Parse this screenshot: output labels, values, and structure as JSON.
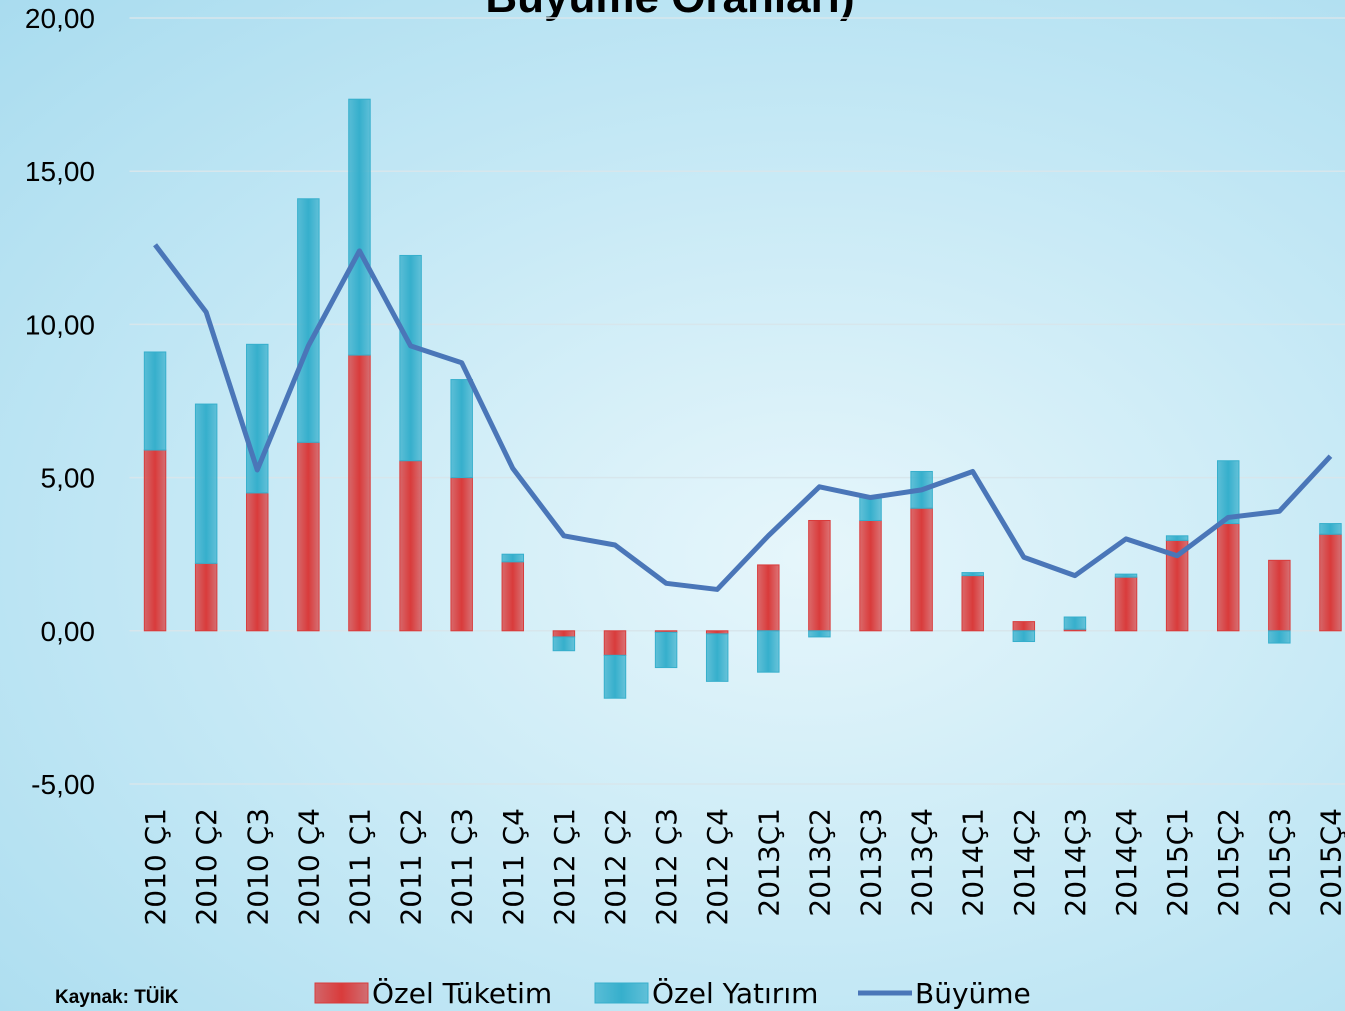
{
  "chart_data": {
    "type": "bar",
    "title": "Büyüme Oranları)",
    "source": "Kaynak: TÜİK",
    "categories": [
      "2010 Ç1",
      "2010 Ç2",
      "2010 Ç3",
      "2010 Ç4",
      "2011 Ç1",
      "2011 Ç2",
      "2011 Ç3",
      "2011 Ç4",
      "2012 Ç1",
      "2012 Ç2",
      "2012 Ç3",
      "2012 Ç4",
      "2013Ç1",
      "2013Ç2",
      "2013Ç3",
      "2013Ç4",
      "2014Ç1",
      "2014Ç2",
      "2014Ç3",
      "2014Ç4",
      "2015Ç1",
      "2015Ç2",
      "2015Ç3",
      "2015Ç4"
    ],
    "series": [
      {
        "name": "Özel Tüketim",
        "type": "bar",
        "color": "#d93b3b",
        "values": [
          5.9,
          2.2,
          4.5,
          6.15,
          9.0,
          5.55,
          5.0,
          2.25,
          -0.2,
          -0.8,
          -0.05,
          -0.1,
          2.15,
          3.6,
          3.6,
          4.0,
          1.8,
          0.3,
          0.05,
          1.75,
          2.95,
          3.5,
          2.3,
          3.15
        ]
      },
      {
        "name": "Özel Yatırım",
        "type": "bar",
        "color": "#36afcc",
        "values": [
          3.2,
          5.2,
          4.85,
          7.95,
          8.35,
          6.7,
          3.2,
          0.25,
          -0.45,
          -1.4,
          -1.15,
          -1.55,
          -1.35,
          -0.2,
          0.75,
          1.2,
          0.1,
          -0.35,
          0.4,
          0.1,
          0.15,
          2.05,
          -0.4,
          0.35
        ]
      },
      {
        "name": "Büyüme",
        "type": "line",
        "color": "#4a76b8",
        "values": [
          12.6,
          10.4,
          5.25,
          9.3,
          12.4,
          9.3,
          8.75,
          5.3,
          3.1,
          2.8,
          1.55,
          1.35,
          3.1,
          4.7,
          4.35,
          4.6,
          5.2,
          2.4,
          1.8,
          3.0,
          2.45,
          3.7,
          3.9,
          5.7
        ]
      }
    ],
    "ylim": [
      -5,
      20
    ],
    "yticks": [
      {
        "value": -5,
        "label": "-5,00"
      },
      {
        "value": 0,
        "label": "0,00"
      },
      {
        "value": 5,
        "label": "5,00"
      },
      {
        "value": 10,
        "label": "10,00"
      },
      {
        "value": 15,
        "label": "15,00"
      },
      {
        "value": 20,
        "label": "20,00"
      }
    ],
    "grid": true
  }
}
